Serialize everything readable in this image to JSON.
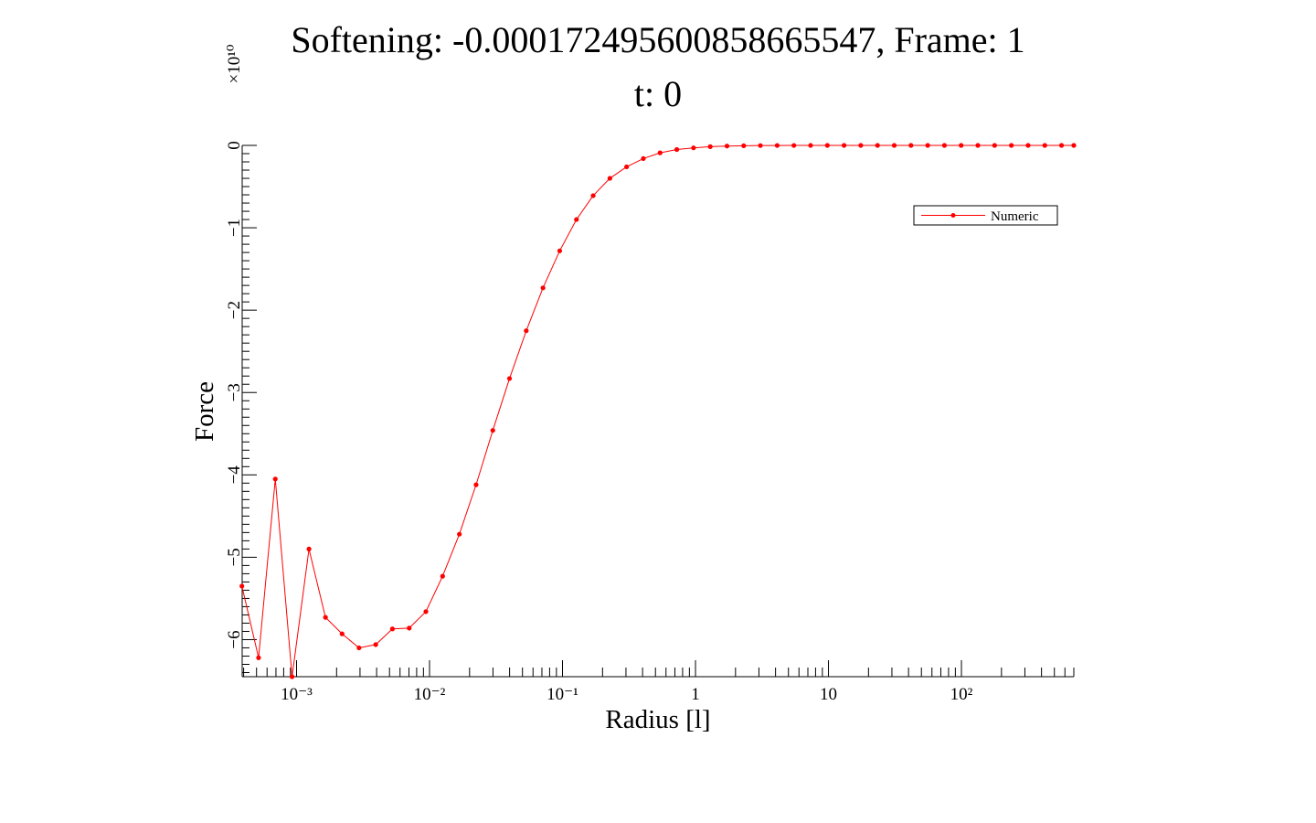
{
  "chart_data": {
    "type": "line",
    "title_line1": "Softening: -0.000172495600858665547, Frame: 1",
    "title_line2": "t: 0",
    "xlabel": "Radius [l]",
    "ylabel": "Force",
    "y_multiplier": "×10¹⁰",
    "x_scale": "log",
    "xlim": [
      0.00039,
      700
    ],
    "ylim": [
      -6.45,
      0
    ],
    "grid": false,
    "legend_position": "top-right",
    "x_ticks": [
      {
        "value": 0.001,
        "label": "10⁻³"
      },
      {
        "value": 0.01,
        "label": "10⁻²"
      },
      {
        "value": 0.1,
        "label": "10⁻¹"
      },
      {
        "value": 1,
        "label": "1"
      },
      {
        "value": 10,
        "label": "10"
      },
      {
        "value": 100,
        "label": "10²"
      }
    ],
    "y_ticks": [
      {
        "value": 0,
        "label": "0"
      },
      {
        "value": -1,
        "label": "−1"
      },
      {
        "value": -2,
        "label": "−2"
      },
      {
        "value": -3,
        "label": "−3"
      },
      {
        "value": -4,
        "label": "−4"
      },
      {
        "value": -5,
        "label": "−5"
      },
      {
        "value": -6,
        "label": "−6"
      }
    ],
    "series": [
      {
        "name": "Numeric",
        "color": "#ff0000",
        "x": [
          0.000388,
          0.000518,
          0.000692,
          0.000925,
          0.00124,
          0.00165,
          0.0022,
          0.00295,
          0.00394,
          0.00526,
          0.00703,
          0.00939,
          0.01254,
          0.01676,
          0.02239,
          0.02991,
          0.03995,
          0.05338,
          0.07131,
          0.09526,
          0.1273,
          0.17,
          0.2271,
          0.3034,
          0.4053,
          0.5415,
          0.7234,
          0.9665,
          1.291,
          1.725,
          2.304,
          3.078,
          4.112,
          5.494,
          7.34,
          9.806,
          13.1,
          17.5,
          23.38,
          31.23,
          41.73,
          55.75,
          74.48,
          99.5,
          132.9,
          177.6,
          237.3,
          317.0,
          423.5,
          565.8,
          700.0
        ],
        "values": [
          -5.35,
          -6.22,
          -4.05,
          -6.45,
          -4.9,
          -5.73,
          -5.93,
          -6.1,
          -6.06,
          -5.87,
          -5.86,
          -5.66,
          -5.23,
          -4.72,
          -4.12,
          -3.46,
          -2.83,
          -2.25,
          -1.73,
          -1.28,
          -0.9,
          -0.61,
          -0.4,
          -0.26,
          -0.16,
          -0.09,
          -0.05,
          -0.03,
          -0.015,
          -0.008,
          -0.004,
          -0.002,
          -0.001,
          -0.0005,
          -0.0003,
          -0.0002,
          -0.0001,
          -0.0001,
          0,
          0,
          0,
          0,
          0,
          0,
          0,
          0,
          0,
          0,
          0,
          0,
          0
        ]
      }
    ]
  }
}
